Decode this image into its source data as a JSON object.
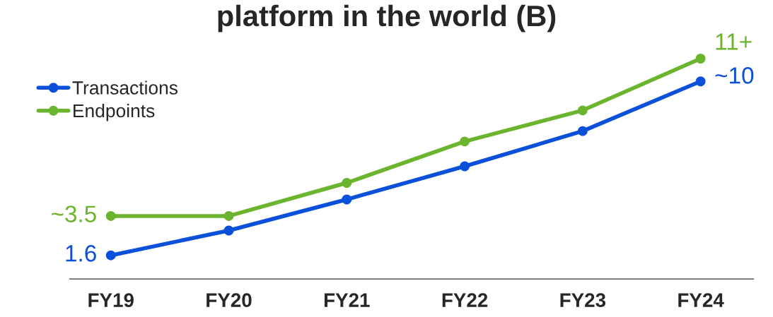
{
  "chart_data": {
    "type": "line",
    "title": "platform in the world (B)",
    "categories": [
      "FY19",
      "FY20",
      "FY21",
      "FY22",
      "FY23",
      "FY24"
    ],
    "series": [
      {
        "name": "Transactions",
        "color": "#0a50d8",
        "values": [
          1.6,
          2.8,
          4.3,
          5.9,
          7.6,
          10
        ],
        "value_labels": [
          "1.6",
          null,
          null,
          null,
          null,
          "~10"
        ]
      },
      {
        "name": "Endpoints",
        "color": "#6bb42e",
        "values": [
          3.5,
          3.5,
          5.1,
          7.1,
          8.6,
          11.1
        ],
        "value_labels": [
          "~3.5",
          null,
          null,
          null,
          null,
          "11+"
        ]
      }
    ],
    "marker": "circle",
    "line_style": "solid",
    "legend": "left",
    "grid": false
  }
}
